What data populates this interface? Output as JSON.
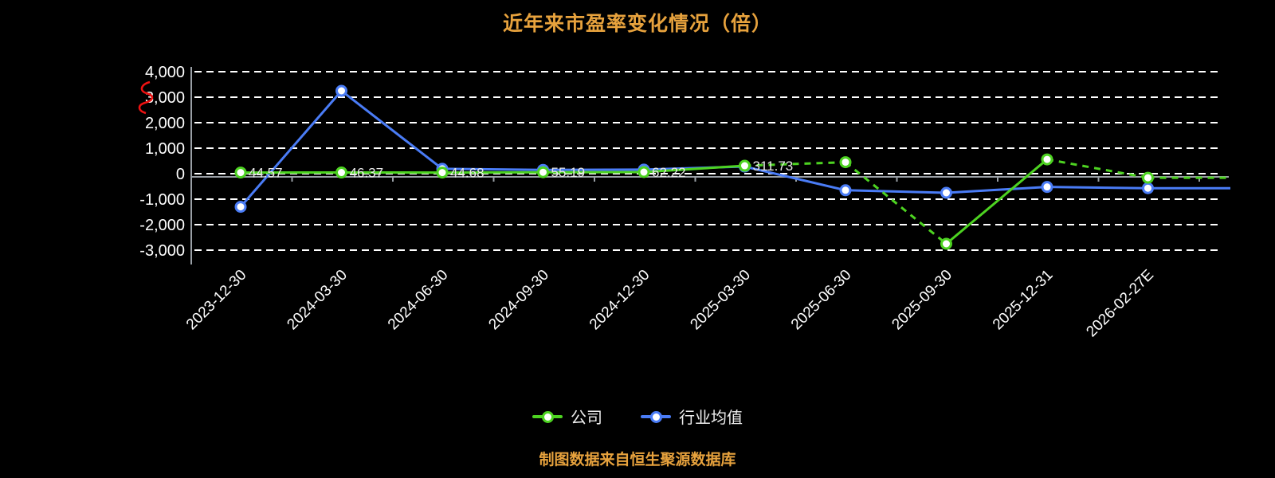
{
  "footer": "制图数据来自恒生聚源数据库",
  "chart_data": {
    "type": "line",
    "title": "近年来市盈率变化情况（倍）",
    "categories": [
      "2023-12-30",
      "2024-03-30",
      "2024-06-30",
      "2024-09-30",
      "2024-12-30",
      "2025-03-30",
      "2025-06-30",
      "2025-09-30",
      "2025-12-31",
      "2026-02-27E"
    ],
    "series": [
      {
        "name": "公司",
        "color": "#4dd321",
        "values": [
          44.57,
          46.37,
          44.68,
          55.19,
          62.22,
          311.73,
          450,
          -2750,
          560,
          -160
        ],
        "labels": [
          "44.57",
          "46.37",
          "44.68",
          "55.19",
          "62.22",
          "311.73",
          "",
          "",
          "",
          ""
        ],
        "dashed_segments": [
          [
            5,
            6
          ],
          [
            6,
            7
          ],
          [
            8,
            9
          ]
        ]
      },
      {
        "name": "行业均值",
        "color": "#4a7cf6",
        "values": [
          -1300,
          3250,
          190,
          150,
          160,
          280,
          -650,
          -750,
          -520,
          -570
        ],
        "labels": null,
        "dashed_segments": []
      }
    ],
    "ylim": [
      -3000,
      4000
    ],
    "yticks": [
      4000,
      3000,
      2000,
      1000,
      0,
      -1000,
      -2000,
      -3000
    ],
    "ytick_step": 1000,
    "grid": "horizontal-dashed-white",
    "legend_position": "bottom",
    "background": "#000000",
    "accent_text_color": "#e7a23d"
  }
}
